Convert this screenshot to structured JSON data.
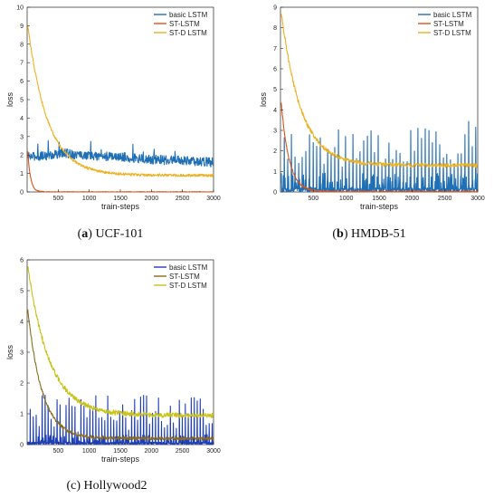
{
  "chart_data": [
    {
      "type": "line",
      "caption_letter": "a",
      "caption_text": "UCF-101",
      "xlabel": "train-steps",
      "ylabel": "loss",
      "xlim": [
        0,
        3000
      ],
      "ylim": [
        0,
        10
      ],
      "xticks": [
        500,
        1000,
        1500,
        2000,
        2500,
        3000
      ],
      "yticks": [
        0,
        1,
        2,
        3,
        4,
        5,
        6,
        7,
        8,
        9,
        10
      ],
      "legend_position": "top-right",
      "series": [
        {
          "name": "basic LSTM",
          "color": "#1f6fb4",
          "kind": "noisy",
          "base": [
            [
              0,
              1.9
            ],
            [
              400,
              2.0
            ],
            [
              600,
              2.1
            ],
            [
              1000,
              1.95
            ],
            [
              1500,
              1.9
            ],
            [
              2000,
              1.75
            ],
            [
              2500,
              1.7
            ],
            [
              3000,
              1.6
            ]
          ],
          "amp": 0.25,
          "spike": 0.9,
          "spike_every": 170
        },
        {
          "name": "ST-LSTM",
          "color": "#d95319",
          "kind": "decay",
          "start": 2.2,
          "end": 0.0,
          "tau": 45,
          "noise": 0.02
        },
        {
          "name": "ST-D LSTM",
          "color": "#edb120",
          "kind": "decay",
          "start": 9.0,
          "end": 0.9,
          "tau": 320,
          "noise": 0.07
        }
      ]
    },
    {
      "type": "line",
      "caption_letter": "b",
      "caption_text": "HMDB-51",
      "xlabel": "train-steps",
      "ylabel": "loss",
      "xlim": [
        0,
        3000
      ],
      "ylim": [
        0,
        9
      ],
      "xticks": [
        500,
        1000,
        1500,
        2000,
        2500,
        3000
      ],
      "yticks": [
        0,
        1,
        2,
        3,
        4,
        5,
        6,
        7,
        8,
        9
      ],
      "legend_position": "top-right",
      "series": [
        {
          "name": "basic LSTM",
          "color": "#1f6fb4",
          "kind": "spiky",
          "floor": 0.0,
          "low": 0.2,
          "peak_min": 1.2,
          "peak_max": 3.5,
          "period": 55
        },
        {
          "name": "ST-LSTM",
          "color": "#d95319",
          "kind": "decay",
          "start": 4.4,
          "end": 0.0,
          "tau": 120,
          "noise": 0.05
        },
        {
          "name": "ST-D LSTM",
          "color": "#edb120",
          "kind": "decay",
          "start": 8.8,
          "end": 1.3,
          "tau": 300,
          "noise": 0.1
        }
      ]
    },
    {
      "type": "line",
      "caption_letter": "c",
      "caption_text": "Hollywood2",
      "xlabel": "train-steps",
      "ylabel": "loss",
      "xlim": [
        0,
        3000
      ],
      "ylim": [
        0,
        6
      ],
      "xticks": [
        500,
        1000,
        1500,
        2000,
        2500,
        3000
      ],
      "yticks": [
        0,
        1,
        2,
        3,
        4,
        5,
        6
      ],
      "legend_position": "top-right",
      "series": [
        {
          "name": "basic LSTM",
          "color": "#1f3fb4",
          "kind": "spiky",
          "floor": 0.0,
          "low": 0.08,
          "peak_min": 0.4,
          "peak_max": 1.6,
          "period": 48
        },
        {
          "name": "ST-LSTM",
          "color": "#8c6d1f",
          "kind": "decay",
          "start": 4.4,
          "end": 0.2,
          "tau": 230,
          "noise": 0.05
        },
        {
          "name": "ST-D LSTM",
          "color": "#c8c21a",
          "kind": "decay",
          "start": 5.8,
          "end": 0.95,
          "tau": 350,
          "noise": 0.08
        }
      ]
    }
  ]
}
